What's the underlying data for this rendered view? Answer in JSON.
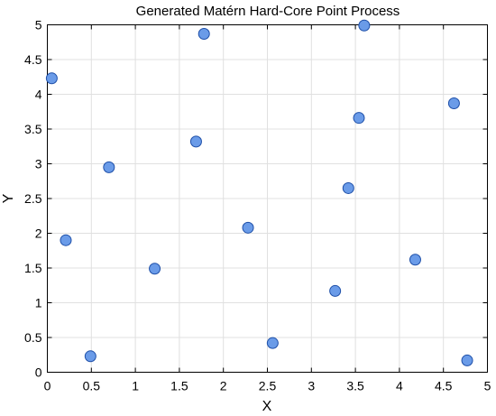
{
  "chart_data": {
    "type": "scatter",
    "title": "Generated Matérn Hard-Core Point Process",
    "xlabel": "X",
    "ylabel": "Y",
    "xlim": [
      0,
      5
    ],
    "ylim": [
      0,
      5
    ],
    "xticks": [
      "0",
      "0.5",
      "1",
      "1.5",
      "2",
      "2.5",
      "3",
      "3.5",
      "4",
      "4.5",
      "5"
    ],
    "yticks": [
      "0",
      "0.5",
      "1",
      "1.5",
      "2",
      "2.5",
      "3",
      "3.5",
      "4",
      "4.5",
      "5"
    ],
    "grid": true,
    "points": [
      {
        "x": 0.05,
        "y": 4.23
      },
      {
        "x": 0.21,
        "y": 1.9
      },
      {
        "x": 0.49,
        "y": 0.23
      },
      {
        "x": 0.7,
        "y": 2.95
      },
      {
        "x": 1.22,
        "y": 1.49
      },
      {
        "x": 1.69,
        "y": 3.32
      },
      {
        "x": 1.78,
        "y": 4.87
      },
      {
        "x": 2.28,
        "y": 2.08
      },
      {
        "x": 2.56,
        "y": 0.42
      },
      {
        "x": 3.27,
        "y": 1.17
      },
      {
        "x": 3.42,
        "y": 2.65
      },
      {
        "x": 3.54,
        "y": 3.66
      },
      {
        "x": 3.6,
        "y": 4.99
      },
      {
        "x": 4.18,
        "y": 1.62
      },
      {
        "x": 4.62,
        "y": 3.87
      },
      {
        "x": 4.77,
        "y": 0.17
      }
    ],
    "marker_fill": "#6a9be8",
    "marker_edge": "#1e4fa8"
  }
}
